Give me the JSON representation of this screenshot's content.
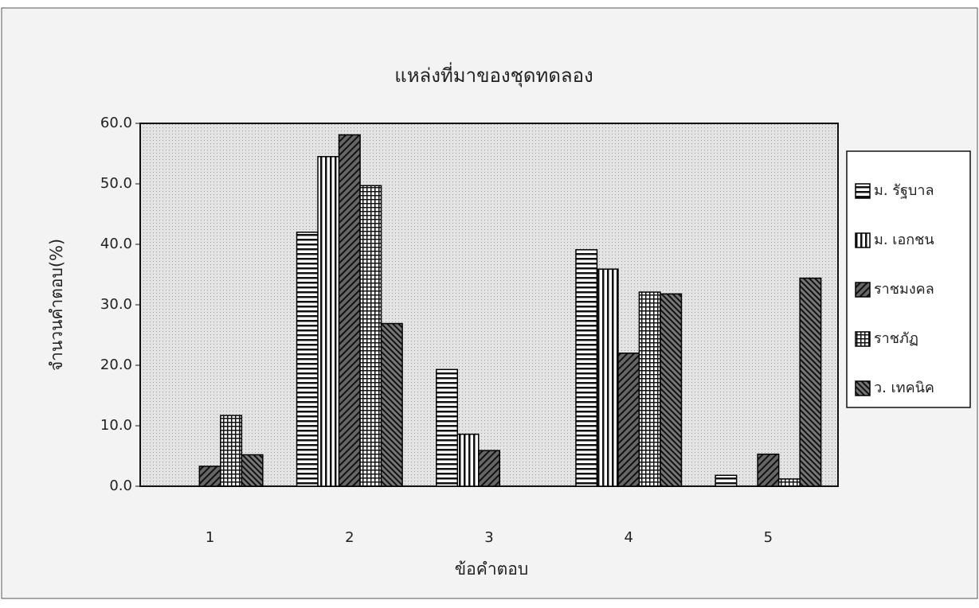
{
  "chart_data": {
    "type": "bar",
    "title": "แหล่งที่มาของชุดทดลอง",
    "x_label": "ข้อคำตอบ",
    "y_label": "จำนวนคำตอบ(%)",
    "categories": [
      "1",
      "2",
      "3",
      "4",
      "5"
    ],
    "series": [
      {
        "name": "ม. รัฐบาล",
        "color": "#000000",
        "pattern": "horizontal",
        "values": [
          null,
          42.0,
          19.3,
          39.1,
          1.8
        ]
      },
      {
        "name": "ม. เอกชน",
        "color": "#000000",
        "pattern": "vertical",
        "values": [
          null,
          54.5,
          8.6,
          35.9,
          null
        ]
      },
      {
        "name": "ราชมงคล",
        "color": "#000000",
        "pattern": "diagonal",
        "values": [
          3.3,
          58.1,
          5.9,
          22.0,
          5.3
        ]
      },
      {
        "name": "ราชภัฏ",
        "color": "#000000",
        "pattern": "grid",
        "values": [
          11.7,
          49.7,
          null,
          32.1,
          1.2
        ]
      },
      {
        "name": "ว. เทคนิค",
        "color": "#000000",
        "pattern": "diagonal-dense",
        "values": [
          5.2,
          26.9,
          null,
          31.8,
          34.4
        ]
      }
    ],
    "ylim": [
      0,
      60
    ],
    "yticks": [
      {
        "value": 0,
        "label": "0.0"
      },
      {
        "value": 10,
        "label": "10.0"
      },
      {
        "value": 20,
        "label": "20.0"
      },
      {
        "value": 30,
        "label": "30.0"
      },
      {
        "value": 40,
        "label": "40.0"
      },
      {
        "value": 50,
        "label": "50.0"
      },
      {
        "value": 60,
        "label": "60.0"
      }
    ],
    "legend": "right"
  }
}
